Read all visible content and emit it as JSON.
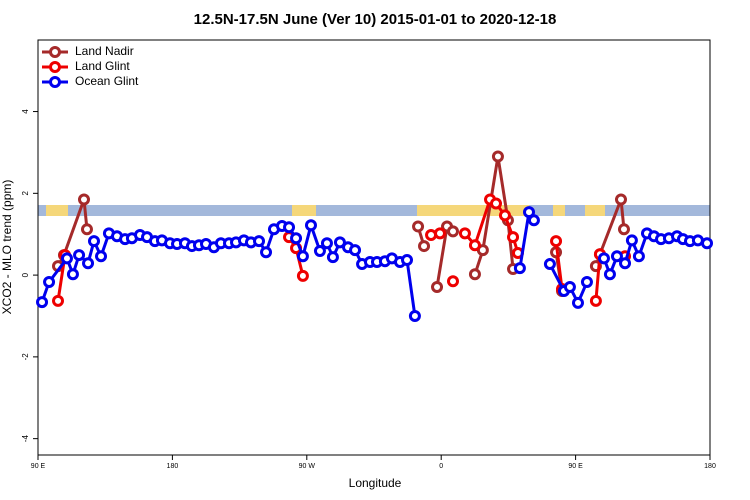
{
  "chart_data": {
    "type": "line",
    "title": "12.5N-17.5N June (Ver 10)   2015-01-01 to 2020-12-18",
    "x_label": "Longitude",
    "y_label": "XCO2 - MLO trend (ppm)",
    "xlim": [
      90,
      540
    ],
    "ylim": [
      -4.4,
      5.75
    ],
    "xticks": [
      {
        "value": 90,
        "label": "90 E"
      },
      180,
      {
        "value": 270,
        "label": "90 W"
      },
      {
        "value": 360,
        "label": "0"
      },
      {
        "value": 450,
        "label": "90 E"
      },
      {
        "value": 540,
        "label": "180"
      }
    ],
    "yticks": [
      -4,
      -2,
      0,
      2,
      4
    ],
    "legend": "top-left",
    "series": [
      {
        "name": "Land Nadir",
        "color": "#a52a2a",
        "x": [
          103.4,
          107.4,
          120.8,
          122.8,
          null,
          344.5,
          348.5,
          null,
          357.2,
          363.9,
          367.9,
          null,
          382.6,
          387.9,
          398.0,
          404.7,
          408.1,
          null,
          436.9,
          440.9,
          null,
          463.6,
          466.3,
          480.4,
          482.4
        ],
        "values": [
          0.22,
          0.49,
          1.85,
          1.12,
          null,
          1.19,
          0.71,
          null,
          -0.29,
          1.19,
          1.07,
          null,
          0.02,
          0.61,
          2.9,
          1.34,
          0.15,
          null,
          0.56,
          -0.39,
          null,
          0.22,
          0.51,
          1.85,
          1.12
        ]
      },
      {
        "name": "Land Glint",
        "color": "#ee0000",
        "x": [
          103.4,
          108.1,
          null,
          258.1,
          262.8,
          267.4,
          null,
          353.2,
          359.2,
          null,
          367.9,
          null,
          375.9,
          382.6,
          392.7,
          396.7,
          402.7,
          408.1,
          411.4,
          null,
          436.9,
          440.9,
          null,
          463.6,
          466.3,
          null,
          483.1
        ],
        "values": [
          -0.63,
          0.49,
          null,
          0.93,
          0.66,
          -0.02,
          null,
          0.98,
          1.02,
          null,
          -0.15,
          null,
          1.02,
          0.73,
          1.85,
          1.75,
          1.46,
          0.93,
          0.54,
          null,
          0.83,
          -0.34,
          null,
          -0.63,
          0.51,
          null,
          0.46
        ]
      },
      {
        "name": "Ocean Glint",
        "color": "#0000ee",
        "x": [
          92.7,
          97.4,
          109.4,
          113.4,
          117.5,
          123.5,
          127.5,
          132.2,
          137.5,
          142.9,
          148.3,
          152.9,
          158.3,
          163.0,
          168.3,
          173.0,
          178.4,
          183.1,
          188.4,
          193.1,
          197.8,
          202.5,
          207.8,
          212.5,
          217.9,
          222.6,
          227.9,
          232.6,
          238.0,
          242.7,
          248.0,
          253.4,
          258.1,
          262.8,
          267.4,
          272.8,
          278.8,
          283.5,
          287.5,
          292.2,
          297.6,
          302.3,
          307.0,
          312.3,
          317.0,
          322.3,
          327.0,
          332.4,
          337.1,
          342.4,
          null,
          412.7,
          418.8,
          422.1,
          null,
          432.8,
          442.2,
          446.2,
          451.6,
          457.6,
          null,
          469.0,
          473.0,
          477.7,
          483.1,
          487.7,
          492.4,
          497.8,
          502.5,
          507.2,
          512.5,
          517.9,
          521.9,
          526.6,
          531.9,
          538.0
        ],
        "values": [
          -0.66,
          -0.17,
          0.41,
          0.02,
          0.49,
          0.29,
          0.83,
          0.46,
          1.02,
          0.95,
          0.88,
          0.9,
          0.98,
          0.93,
          0.83,
          0.85,
          0.78,
          0.76,
          0.78,
          0.71,
          0.73,
          0.76,
          0.68,
          0.78,
          0.78,
          0.8,
          0.85,
          0.8,
          0.83,
          0.56,
          1.12,
          1.2,
          1.17,
          0.9,
          0.46,
          1.22,
          0.59,
          0.78,
          0.44,
          0.8,
          0.68,
          0.61,
          0.27,
          0.32,
          0.32,
          0.34,
          0.41,
          0.32,
          0.37,
          -1.0,
          null,
          0.17,
          1.54,
          1.34,
          null,
          0.27,
          -0.39,
          -0.29,
          -0.68,
          -0.17,
          null,
          0.41,
          0.02,
          0.46,
          0.29,
          0.85,
          0.46,
          1.02,
          0.95,
          0.88,
          0.9,
          0.95,
          0.88,
          0.83,
          0.85,
          0.78
        ]
      }
    ]
  }
}
